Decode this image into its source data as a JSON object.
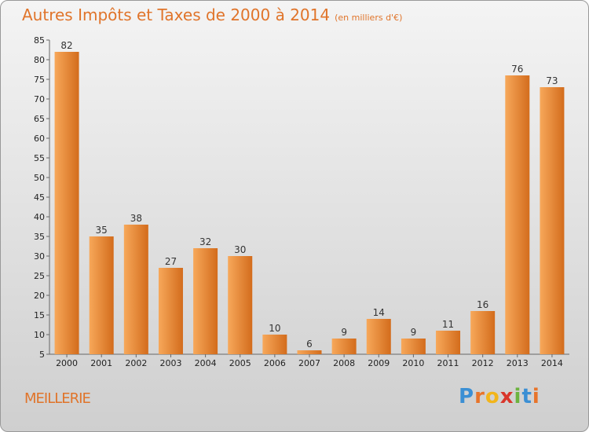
{
  "title": "Autres Impôts et Taxes de 2000 à 2014",
  "subtitle": "(en milliers d'€)",
  "commune": "MEILLERIE",
  "logo": {
    "letters": [
      "P",
      "r",
      "o",
      "x",
      "i",
      "t",
      "i"
    ],
    "colors": [
      "#3b8fd4",
      "#e8742a",
      "#f2b51b",
      "#d9362b",
      "#6cb33f",
      "#3b8fd4",
      "#e8742a"
    ]
  },
  "colors": {
    "bar_light": "#f7a85a",
    "bar_dark": "#d36c1c",
    "accent": "#e0742a"
  },
  "chart_data": {
    "type": "bar",
    "title": "Autres Impôts et Taxes de 2000 à 2014",
    "subtitle": "(en milliers d'€)",
    "categories": [
      "2000",
      "2001",
      "2002",
      "2003",
      "2004",
      "2005",
      "2006",
      "2007",
      "2008",
      "2009",
      "2010",
      "2011",
      "2012",
      "2013",
      "2014"
    ],
    "values": [
      82,
      35,
      38,
      27,
      32,
      30,
      10,
      6,
      9,
      14,
      9,
      11,
      16,
      76,
      73
    ],
    "ylim": [
      5,
      85
    ],
    "yticks": [
      5,
      10,
      15,
      20,
      25,
      30,
      35,
      40,
      45,
      50,
      55,
      60,
      65,
      70,
      75,
      80,
      85
    ],
    "grid": false,
    "legend": "none"
  }
}
